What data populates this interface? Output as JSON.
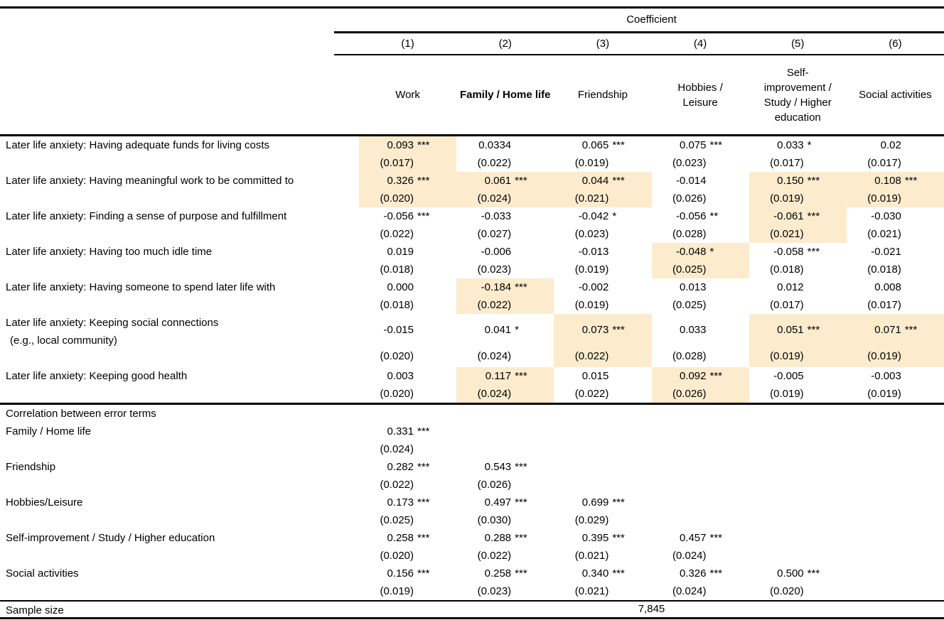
{
  "colors": {
    "highlight": "#FCEBCD"
  },
  "header": {
    "title": "Coefficient",
    "column_numbers": [
      "(1)",
      "(2)",
      "(3)",
      "(4)",
      "(5)",
      "(6)"
    ],
    "columns": [
      {
        "label": "Work",
        "bold": false,
        "lines": [
          "Work"
        ]
      },
      {
        "label": "Family / Home life",
        "bold": true,
        "lines": [
          "Family / Home life"
        ]
      },
      {
        "label": "Friendship",
        "bold": false,
        "lines": [
          "Friendship"
        ]
      },
      {
        "label": "Hobbies / Leisure",
        "bold": false,
        "lines": [
          "Hobbies /",
          "Leisure"
        ]
      },
      {
        "label": "Self-improvement / Study / Higher education",
        "bold": false,
        "lines": [
          "Self-",
          "improvement /",
          "Study / Higher",
          "education"
        ]
      },
      {
        "label": "Social activities",
        "bold": false,
        "lines": [
          "Social activities"
        ]
      }
    ]
  },
  "coefficient_rows": [
    {
      "label": "Later life anxiety: Having adequate funds for living costs",
      "label2": "",
      "tall": false,
      "cells": [
        {
          "v": "0.093",
          "s": "***",
          "se": "(0.017)",
          "hl": true
        },
        {
          "v": "0.0334",
          "s": "",
          "se": "(0.022)",
          "hl": false
        },
        {
          "v": "0.065",
          "s": "***",
          "se": "(0.019)",
          "hl": false
        },
        {
          "v": "0.075",
          "s": "***",
          "se": "(0.023)",
          "hl": false
        },
        {
          "v": "0.033",
          "s": "*",
          "se": "(0.017)",
          "hl": false
        },
        {
          "v": "0.02",
          "s": "",
          "se": "(0.017)",
          "hl": false
        }
      ]
    },
    {
      "label": "Later life anxiety: Having meaningful work to be committed to",
      "label2": "",
      "tall": false,
      "cells": [
        {
          "v": "0.326",
          "s": "***",
          "se": "(0.020)",
          "hl": true
        },
        {
          "v": "0.061",
          "s": "***",
          "se": "(0.024)",
          "hl": true
        },
        {
          "v": "0.044",
          "s": "***",
          "se": "(0.021)",
          "hl": true
        },
        {
          "v": "-0.014",
          "s": "",
          "se": "(0.026)",
          "hl": false
        },
        {
          "v": "0.150",
          "s": "***",
          "se": "(0.019)",
          "hl": true
        },
        {
          "v": "0.108",
          "s": "***",
          "se": "(0.019)",
          "hl": true
        }
      ]
    },
    {
      "label": "Later life anxiety: Finding a sense of purpose and fulfillment",
      "label2": "",
      "tall": false,
      "cells": [
        {
          "v": "-0.056",
          "s": "***",
          "se": "(0.022)",
          "hl": false
        },
        {
          "v": "-0.033",
          "s": "",
          "se": "(0.027)",
          "hl": false
        },
        {
          "v": "-0.042",
          "s": "*",
          "se": "(0.023)",
          "hl": false
        },
        {
          "v": "-0.056",
          "s": "**",
          "se": "(0.028)",
          "hl": false
        },
        {
          "v": "-0.061",
          "s": "***",
          "se": "(0.021)",
          "hl": true
        },
        {
          "v": "-0.030",
          "s": "",
          "se": "(0.021)",
          "hl": false
        }
      ]
    },
    {
      "label": "Later life anxiety: Having too much idle time",
      "label2": "",
      "tall": false,
      "cells": [
        {
          "v": "0.019",
          "s": "",
          "se": "(0.018)",
          "hl": false
        },
        {
          "v": "-0.006",
          "s": "",
          "se": "(0.023)",
          "hl": false
        },
        {
          "v": "-0.013",
          "s": "",
          "se": "(0.019)",
          "hl": false
        },
        {
          "v": "-0.048",
          "s": "*",
          "se": "(0.025)",
          "hl": true
        },
        {
          "v": "-0.058",
          "s": "***",
          "se": "(0.018)",
          "hl": false
        },
        {
          "v": "-0.021",
          "s": "",
          "se": "(0.018)",
          "hl": false
        }
      ]
    },
    {
      "label": "Later life anxiety: Having someone to spend later life with",
      "label2": "",
      "tall": false,
      "cells": [
        {
          "v": "0.000",
          "s": "",
          "se": "(0.018)",
          "hl": false
        },
        {
          "v": "-0.184",
          "s": "***",
          "se": "(0.022)",
          "hl": true
        },
        {
          "v": "-0.002",
          "s": "",
          "se": "(0.019)",
          "hl": false
        },
        {
          "v": "0.013",
          "s": "",
          "se": "(0.025)",
          "hl": false
        },
        {
          "v": "0.012",
          "s": "",
          "se": "(0.017)",
          "hl": false
        },
        {
          "v": "0.008",
          "s": "",
          "se": "(0.017)",
          "hl": false
        }
      ]
    },
    {
      "label": "Later life anxiety: Keeping social connections",
      "label2": "(e.g., local community)",
      "tall": true,
      "cells": [
        {
          "v": "-0.015",
          "s": "",
          "se": "(0.020)",
          "hl": false
        },
        {
          "v": "0.041",
          "s": "*",
          "se": "(0.024)",
          "hl": false
        },
        {
          "v": "0.073",
          "s": "***",
          "se": "(0.022)",
          "hl": true
        },
        {
          "v": "0.033",
          "s": "",
          "se": "(0.028)",
          "hl": false
        },
        {
          "v": "0.051",
          "s": "***",
          "se": "(0.019)",
          "hl": true
        },
        {
          "v": "0.071",
          "s": "***",
          "se": "(0.019)",
          "hl": true
        }
      ]
    },
    {
      "label": "Later life anxiety: Keeping good health",
      "label2": "",
      "tall": false,
      "cells": [
        {
          "v": "0.003",
          "s": "",
          "se": "(0.020)",
          "hl": false
        },
        {
          "v": "0.117",
          "s": "***",
          "se": "(0.024)",
          "hl": true
        },
        {
          "v": "0.015",
          "s": "",
          "se": "(0.022)",
          "hl": false
        },
        {
          "v": "0.092",
          "s": "***",
          "se": "(0.026)",
          "hl": true
        },
        {
          "v": "-0.005",
          "s": "",
          "se": "(0.019)",
          "hl": false
        },
        {
          "v": "-0.003",
          "s": "",
          "se": "(0.019)",
          "hl": false
        }
      ]
    }
  ],
  "correlation": {
    "header": "Correlation between error terms",
    "rows": [
      {
        "label": "Family / Home life",
        "cells": [
          {
            "v": "0.331",
            "s": "***",
            "se": "(0.024)"
          }
        ]
      },
      {
        "label": "Friendship",
        "cells": [
          {
            "v": "0.282",
            "s": "***",
            "se": "(0.022)"
          },
          {
            "v": "0.543",
            "s": "***",
            "se": "(0.026)"
          }
        ]
      },
      {
        "label": "Hobbies/Leisure",
        "cells": [
          {
            "v": "0.173",
            "s": "***",
            "se": "(0.025)"
          },
          {
            "v": "0.497",
            "s": "***",
            "se": "(0.030)"
          },
          {
            "v": "0.699",
            "s": "***",
            "se": "(0.029)"
          }
        ]
      },
      {
        "label": "Self-improvement / Study / Higher education",
        "cells": [
          {
            "v": "0.258",
            "s": "***",
            "se": "(0.020)"
          },
          {
            "v": "0.288",
            "s": "***",
            "se": "(0.022)"
          },
          {
            "v": "0.395",
            "s": "***",
            "se": "(0.021)"
          },
          {
            "v": "0.457",
            "s": "***",
            "se": "(0.024)"
          }
        ]
      },
      {
        "label": "Social activities",
        "cells": [
          {
            "v": "0.156",
            "s": "***",
            "se": "(0.019)"
          },
          {
            "v": "0.258",
            "s": "***",
            "se": "(0.023)"
          },
          {
            "v": "0.340",
            "s": "***",
            "se": "(0.021)"
          },
          {
            "v": "0.326",
            "s": "***",
            "se": "(0.024)"
          },
          {
            "v": "0.500",
            "s": "***",
            "se": "(0.020)"
          }
        ]
      }
    ]
  },
  "footer": {
    "label": "Sample size",
    "value": "7,845"
  }
}
